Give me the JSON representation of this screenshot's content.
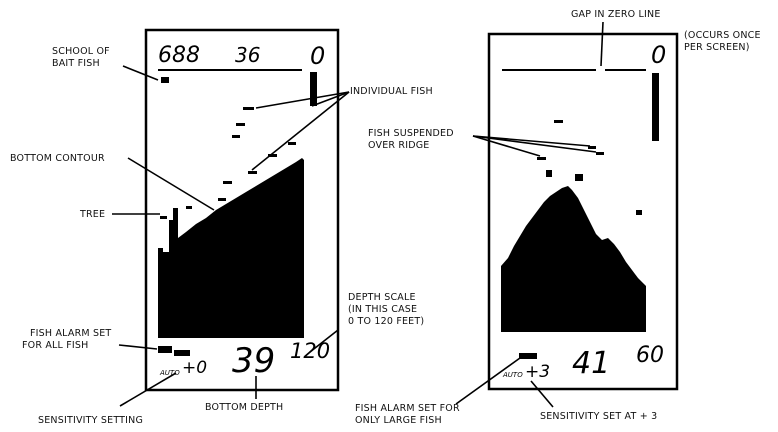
{
  "left_display": {
    "readout_left": "688",
    "readout_mid": "36",
    "readout_right": "0",
    "depth_large": "39",
    "depth_scale": "120",
    "auto_label": "AUTO",
    "sensitivity_value": "+0"
  },
  "right_display": {
    "readout_right": "0",
    "depth_large": "41",
    "depth_scale": "60",
    "auto_label": "AUTO",
    "sensitivity_value": "+3"
  },
  "labels": {
    "school_line1": "SCHOOL OF",
    "school_line2": "BAIT FISH",
    "individual_fish": "INDIVIDUAL FISH",
    "bottom_contour": "BOTTOM CONTOUR",
    "tree": "TREE",
    "depth_scale_line1": "DEPTH SCALE",
    "depth_scale_line2": "(IN THIS CASE",
    "depth_scale_line3": "0 TO 120 FEET)",
    "alarm_all_line1": "FISH ALARM SET",
    "alarm_all_line2": "FOR ALL FISH",
    "sensitivity_setting": "SENSITIVITY SETTING",
    "bottom_depth": "BOTTOM DEPTH",
    "gap_zero": "GAP IN ZERO LINE",
    "occurs_line1": "(OCCURS ONCE",
    "occurs_line2": "PER SCREEN)",
    "suspended_line1": "FISH SUSPENDED",
    "suspended_line2": "OVER RIDGE",
    "alarm_large_line1": "FISH ALARM SET FOR",
    "alarm_large_line2": "ONLY LARGE FISH",
    "sensitivity_set_at": "SENSITIVITY SET AT + 3"
  }
}
